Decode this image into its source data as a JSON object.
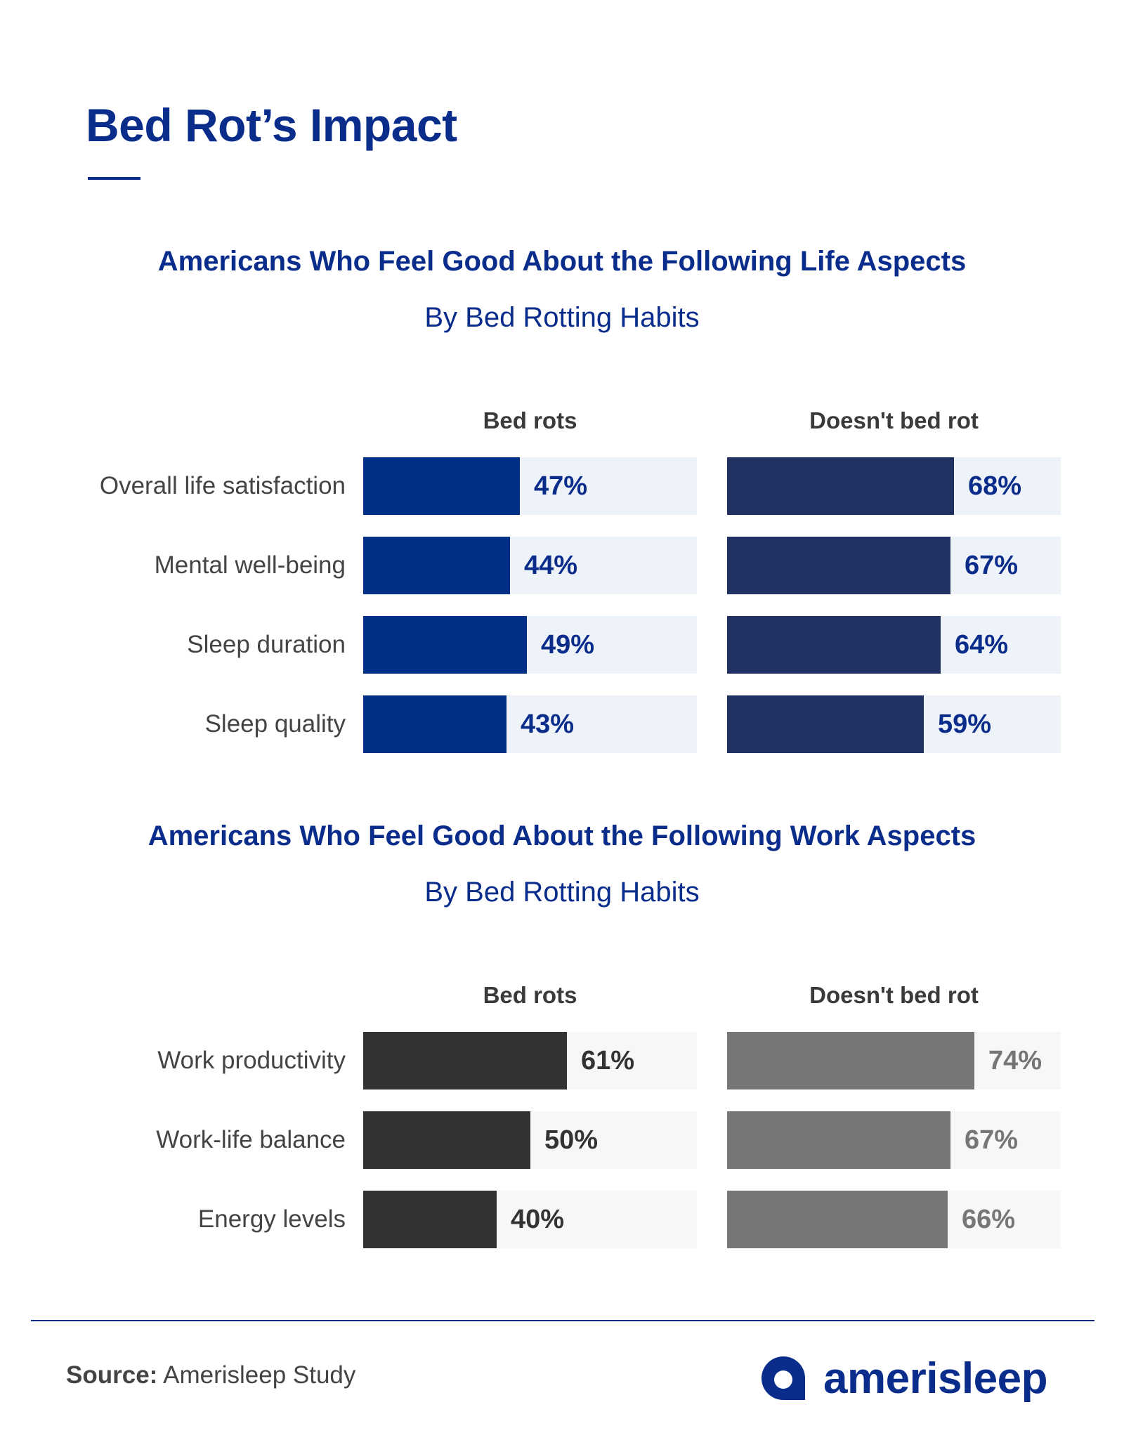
{
  "page": {
    "title": "Bed Rot’s Impact",
    "source_label": "Source:",
    "source_text": "Amerisleep Study",
    "logo_text": "amerisleep"
  },
  "colors": {
    "title": "#0a2d8c",
    "life_bed_rots": "#002f87",
    "life_doesnt": "#213163",
    "life_track": "#eef2f9",
    "life_value_text": "#0a2d8c",
    "work_bed_rots": "#333333",
    "work_doesnt": "#767676",
    "work_track": "#f7f7f7",
    "work_value_text_bed_rots": "#333333",
    "work_value_text_doesnt": "#767676"
  },
  "chart_data": [
    {
      "type": "bar",
      "orientation": "horizontal",
      "title": "Americans Who Feel Good About the Following Life Aspects",
      "subtitle": "By Bed Rotting Habits",
      "categories": [
        "Overall life satisfaction",
        "Mental well-being",
        "Sleep duration",
        "Sleep quality"
      ],
      "series": [
        {
          "name": "Bed rots",
          "values": [
            47,
            44,
            49,
            43
          ],
          "labels": [
            "47%",
            "44%",
            "49%",
            "43%"
          ]
        },
        {
          "name": "Doesn't bed rot",
          "values": [
            68,
            67,
            64,
            59
          ],
          "labels": [
            "68%",
            "67%",
            "64%",
            "59%"
          ]
        }
      ],
      "unit": "%",
      "xlim": [
        0,
        100
      ],
      "grid": false
    },
    {
      "type": "bar",
      "orientation": "horizontal",
      "title": "Americans Who Feel Good About the Following Work Aspects",
      "subtitle": "By Bed Rotting Habits",
      "categories": [
        "Work productivity",
        "Work-life balance",
        "Energy levels"
      ],
      "series": [
        {
          "name": "Bed rots",
          "values": [
            61,
            50,
            40
          ],
          "labels": [
            "61%",
            "50%",
            "40%"
          ]
        },
        {
          "name": "Doesn't bed rot",
          "values": [
            74,
            67,
            66
          ],
          "labels": [
            "74%",
            "67%",
            "66%"
          ]
        }
      ],
      "unit": "%",
      "xlim": [
        0,
        100
      ],
      "grid": false
    }
  ]
}
